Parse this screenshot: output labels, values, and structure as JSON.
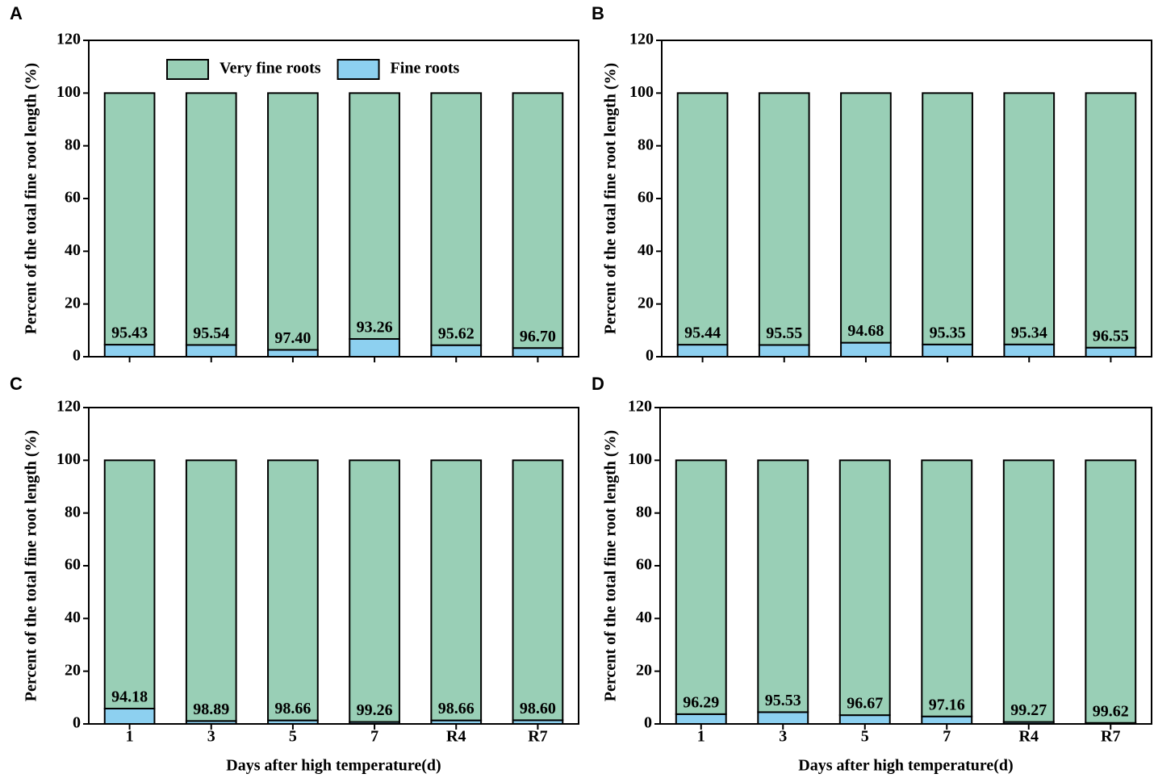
{
  "chart_data": [
    {
      "type": "bar",
      "label": "A",
      "ylabel": "Percent of the total fine root length (%)",
      "categories": [
        null,
        null,
        null,
        null,
        null,
        null
      ],
      "series": [
        {
          "name": "Very fine roots",
          "color": "#99cfb6",
          "values": [
            95.43,
            95.54,
            97.4,
            93.26,
            95.62,
            96.7
          ],
          "value_labels": [
            "95.43",
            "95.54",
            "97.40",
            "93.26",
            "95.62",
            "96.70"
          ]
        },
        {
          "name": "Fine roots",
          "color": "#8dd0f0",
          "values": [
            4.57,
            4.46,
            2.6,
            6.74,
            4.38,
            3.3
          ]
        }
      ],
      "ylim": [
        0,
        120
      ],
      "yticks": [
        0,
        20,
        40,
        60,
        80,
        100,
        120
      ],
      "legend": "top"
    },
    {
      "type": "bar",
      "label": "B",
      "ylabel": "Percent of the total fine root length (%)",
      "categories": [
        null,
        null,
        null,
        null,
        null,
        null
      ],
      "series": [
        {
          "color": "#99cfb6",
          "values": [
            95.44,
            95.55,
            94.68,
            95.35,
            95.34,
            96.55
          ],
          "value_labels": [
            "95.44",
            "95.55",
            "94.68",
            "95.35",
            "95.34",
            "96.55"
          ]
        },
        {
          "color": "#8dd0f0",
          "values": [
            4.56,
            4.45,
            5.32,
            4.65,
            4.66,
            3.45
          ]
        }
      ],
      "ylim": [
        0,
        120
      ],
      "yticks": [
        0,
        20,
        40,
        60,
        80,
        100,
        120
      ]
    },
    {
      "type": "bar",
      "label": "C",
      "ylabel": "Percent of the total fine root length (%)",
      "xlabel": "Days after high temperature(d)",
      "categories": [
        "1",
        "3",
        "5",
        "7",
        "R4",
        "R7"
      ],
      "series": [
        {
          "color": "#99cfb6",
          "values": [
            94.18,
            98.89,
            98.66,
            99.26,
            98.66,
            98.6
          ],
          "value_labels": [
            "94.18",
            "98.89",
            "98.66",
            "99.26",
            "98.66",
            "98.60"
          ]
        },
        {
          "color": "#8dd0f0",
          "values": [
            5.82,
            1.11,
            1.34,
            0.74,
            1.34,
            1.4
          ]
        }
      ],
      "ylim": [
        0,
        120
      ],
      "yticks": [
        0,
        20,
        40,
        60,
        80,
        100,
        120
      ]
    },
    {
      "type": "bar",
      "label": "D",
      "ylabel": "Percent of the total fine root length (%)",
      "xlabel": "Days after high temperature(d)",
      "categories": [
        "1",
        "3",
        "5",
        "7",
        "R4",
        "R7"
      ],
      "series": [
        {
          "color": "#99cfb6",
          "values": [
            96.29,
            95.53,
            96.67,
            97.16,
            99.27,
            99.62
          ],
          "value_labels": [
            "96.29",
            "95.53",
            "96.67",
            "97.16",
            "99.27",
            "99.62"
          ]
        },
        {
          "color": "#8dd0f0",
          "values": [
            3.71,
            4.47,
            3.33,
            2.84,
            0.73,
            0.38
          ]
        }
      ],
      "ylim": [
        0,
        120
      ],
      "yticks": [
        0,
        20,
        40,
        60,
        80,
        100,
        120
      ]
    }
  ]
}
